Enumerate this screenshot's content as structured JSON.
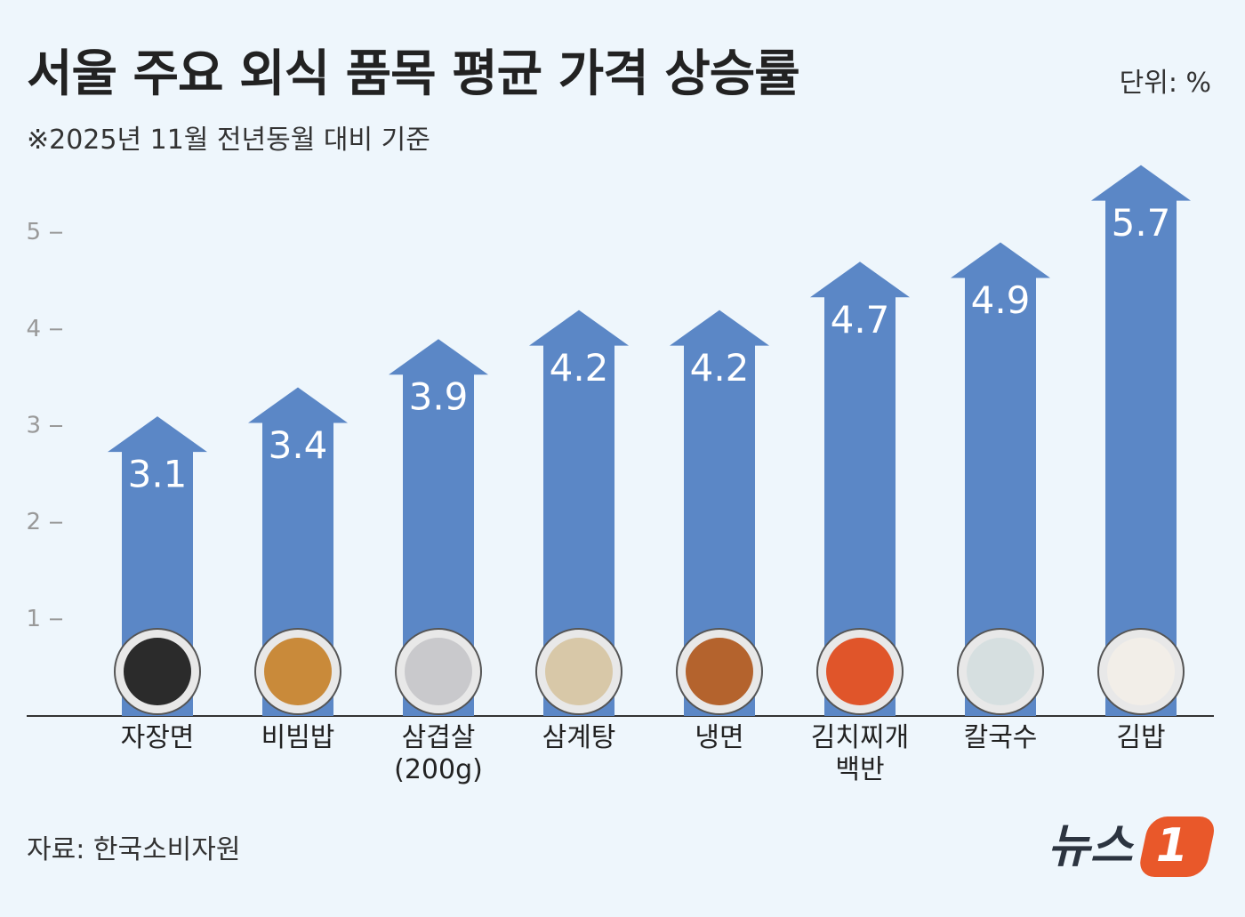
{
  "chart_data": {
    "type": "arrow-bar",
    "title": "서울 주요 외식 품목 평균 가격 상승률",
    "subtitle": "※2025년 11월 전년동월 대비 기준",
    "unit": "단위: %",
    "source": "자료: 한국소비자원",
    "categories": [
      "자장면",
      "비빔밥",
      "삼겹살\n(200g)",
      "삼계탕",
      "냉면",
      "김치찌개\n백반",
      "칼국수",
      "김밥"
    ],
    "values": [
      3.1,
      3.4,
      3.9,
      4.2,
      4.2,
      4.7,
      4.9,
      5.7
    ],
    "color": "#5b87c6",
    "ylim": [
      0,
      6
    ],
    "yticks": [
      1,
      2,
      3,
      4,
      5
    ]
  },
  "logo": {
    "text": "뉴스",
    "badge": "1"
  }
}
